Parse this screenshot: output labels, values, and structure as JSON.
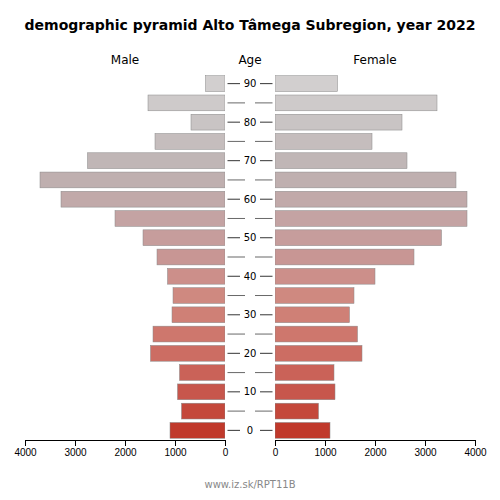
{
  "chart_data": {
    "type": "bar",
    "orientation": "horizontal",
    "title": "demographic pyramid Alto Tâmega Subregion, year 2022",
    "y_label": "Age",
    "annotations": [
      "www.iz.sk/RPT11B"
    ],
    "categories": [
      "0",
      null,
      "10",
      null,
      "20",
      null,
      "30",
      null,
      "40",
      null,
      "50",
      null,
      "60",
      null,
      "70",
      null,
      "80",
      null,
      "90"
    ],
    "series": [
      {
        "name": "Male",
        "values": [
          1100,
          870,
          950,
          910,
          1490,
          1440,
          1060,
          1040,
          1150,
          1360,
          1640,
          2200,
          3280,
          3700,
          2750,
          1400,
          680,
          1540,
          390
        ],
        "colors": [
          "#c0392b",
          "#c4483b",
          "#c7564c",
          "#ca6258",
          "#cc6d63",
          "#ce776d",
          "#cf8076",
          "#cf8980",
          "#cc8f8a",
          "#c89694",
          "#c69d9c",
          "#c4a3a3",
          "#c1a9a9",
          "#bfafaf",
          "#c0b6b6",
          "#c5bdbd",
          "#c9c4c4",
          "#cecaca",
          "#d2cfcf"
        ]
      },
      {
        "name": "Female",
        "values": [
          1100,
          870,
          1200,
          1180,
          1740,
          1650,
          1490,
          1580,
          2000,
          2780,
          3330,
          3840,
          3840,
          3620,
          2640,
          1940,
          2540,
          3240,
          1250
        ],
        "colors": [
          "#c0392b",
          "#c4483b",
          "#c7564c",
          "#ca6258",
          "#cc6d63",
          "#ce776d",
          "#cf8076",
          "#cf8980",
          "#cc8f8a",
          "#c89694",
          "#c69d9c",
          "#c4a3a3",
          "#c1a9a9",
          "#bfafaf",
          "#c0b6b6",
          "#c5bdbd",
          "#c9c4c4",
          "#cecaca",
          "#d2cfcf"
        ]
      }
    ],
    "xlim": [
      0,
      4000
    ],
    "xticks": [
      0,
      1000,
      2000,
      3000,
      4000
    ],
    "grid": false
  }
}
